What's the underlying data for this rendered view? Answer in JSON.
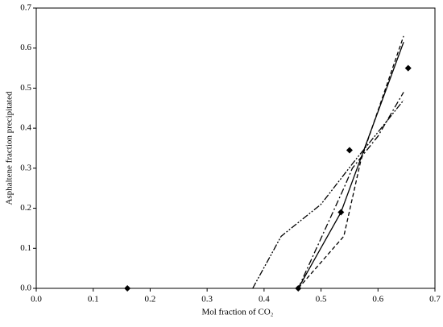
{
  "chart_data": {
    "type": "line",
    "x_label": "Mol fraction of CO₂",
    "y_label": "Asphaltene fraction precipitated",
    "xlim": [
      0,
      0.7
    ],
    "xticks": [
      {
        "value": 0,
        "label": "0.0"
      },
      0.1,
      0.2,
      0.3,
      0.4,
      0.5,
      0.6,
      0.7
    ],
    "ylim": [
      0,
      0.7
    ],
    "yticks": [
      {
        "value": 0,
        "label": "0.0"
      },
      0.1,
      0.2,
      0.3,
      0.4,
      0.5,
      0.6,
      0.7
    ],
    "grid": false,
    "series": [
      {
        "type": "scatter",
        "color": "#000000",
        "x": [
          0.16,
          0.46,
          0.535,
          0.55,
          0.653
        ],
        "values": [
          0.0,
          0.0,
          0.19,
          0.345,
          0.55
        ]
      },
      {
        "type": "line",
        "dash": "none",
        "color": "#000000",
        "x": [
          0.46,
          0.535,
          0.645
        ],
        "values": [
          0.0,
          0.19,
          0.615
        ]
      },
      {
        "type": "line",
        "dash": "5 3",
        "color": "#000000",
        "x": [
          0.46,
          0.54,
          0.57,
          0.645
        ],
        "values": [
          0.0,
          0.13,
          0.32,
          0.63
        ]
      },
      {
        "type": "line",
        "dash": "8 3 2 3",
        "color": "#000000",
        "x": [
          0.46,
          0.54,
          0.555,
          0.6,
          0.645
        ],
        "values": [
          0.0,
          0.25,
          0.3,
          0.38,
          0.49
        ]
      },
      {
        "type": "line",
        "dash": "8 2 2 2 2 2",
        "color": "#000000",
        "x": [
          0.38,
          0.43,
          0.5,
          0.56,
          0.6,
          0.645
        ],
        "values": [
          0.0,
          0.13,
          0.21,
          0.32,
          0.39,
          0.47
        ]
      }
    ]
  }
}
